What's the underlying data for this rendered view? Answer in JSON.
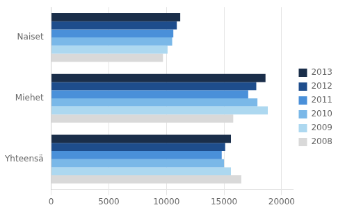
{
  "chart_data": {
    "type": "bar",
    "orientation": "horizontal",
    "categories": [
      "Naiset",
      "Miehet",
      "Yhteensä"
    ],
    "series": [
      {
        "name": "2013",
        "color": "#1a2e4a",
        "values": [
          11200,
          18600,
          15600
        ]
      },
      {
        "name": "2012",
        "color": "#1e4d8c",
        "values": [
          10900,
          17800,
          15100
        ]
      },
      {
        "name": "2011",
        "color": "#4a90d9",
        "values": [
          10600,
          17100,
          14800
        ]
      },
      {
        "name": "2010",
        "color": "#7ab8e8",
        "values": [
          10500,
          17900,
          15000
        ]
      },
      {
        "name": "2009",
        "color": "#add8f0",
        "values": [
          10100,
          18800,
          15600
        ]
      },
      {
        "name": "2008",
        "color": "#d9d9d9",
        "values": [
          9700,
          15800,
          16500
        ]
      }
    ],
    "xlim": [
      0,
      21000
    ],
    "xticks": [
      0,
      5000,
      10000,
      15000,
      20000
    ],
    "grid": true,
    "legend": "right"
  }
}
